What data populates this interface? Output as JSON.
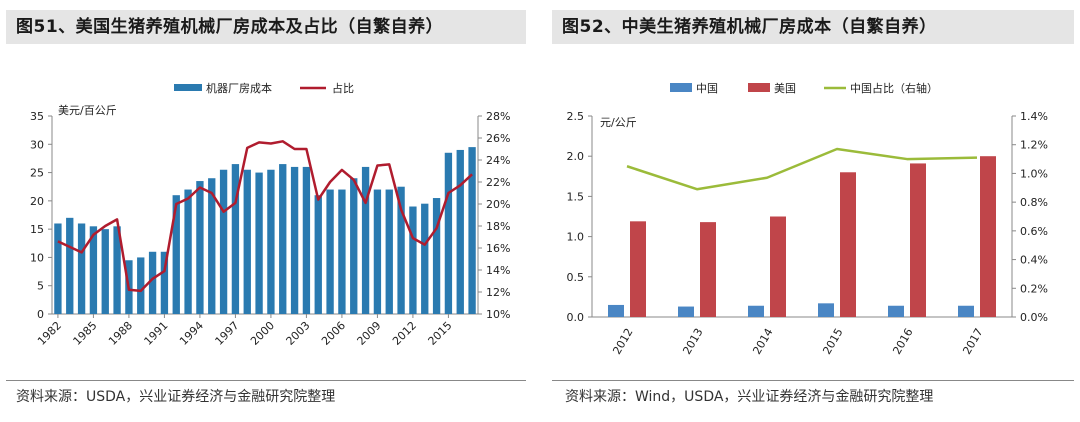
{
  "figure_left": {
    "header": "图51、美国生猪养殖机械厂房成本及占比（自繁自养）",
    "source": "资料来源：USDA，兴业证券经济与金融研究院整理"
  },
  "figure_right": {
    "header": "图52、中美生猪养殖机械厂房成本（自繁自养）",
    "source": "资料来源：Wind，USDA，兴业证券经济与金融研究院整理"
  },
  "chart_data": [
    {
      "type": "bar",
      "ylabel": "美元/百公斤",
      "ylim": [
        0,
        35
      ],
      "yticks": [
        "0",
        "5",
        "10",
        "15",
        "20",
        "25",
        "30",
        "35"
      ],
      "y2lim": [
        0.1,
        0.28
      ],
      "y2ticks": [
        "10%",
        "12%",
        "14%",
        "16%",
        "18%",
        "20%",
        "22%",
        "24%",
        "26%",
        "28%"
      ],
      "x": [
        1982,
        1983,
        1984,
        1985,
        1986,
        1987,
        1988,
        1989,
        1990,
        1991,
        1992,
        1993,
        1994,
        1995,
        1996,
        1997,
        1998,
        1999,
        2000,
        2001,
        2002,
        2003,
        2004,
        2005,
        2006,
        2007,
        2008,
        2009,
        2010,
        2011,
        2012,
        2013,
        2014,
        2015,
        2016,
        2017
      ],
      "xticklabels": [
        "1982",
        "1985",
        "1988",
        "1991",
        "1994",
        "1997",
        "2000",
        "2003",
        "2006",
        "2009",
        "2012",
        "2015"
      ],
      "legend_position": "top",
      "grid": false,
      "series": [
        {
          "name": "机器厂房成本",
          "kind": "bar",
          "axis": "left",
          "color": "#2a7ab0",
          "values": [
            16,
            17,
            16,
            15.5,
            15,
            15.5,
            9.5,
            10,
            11,
            11,
            21,
            22,
            23.5,
            24,
            25.5,
            26.5,
            25.5,
            25,
            25.5,
            26.5,
            26,
            26,
            21,
            22,
            22,
            24,
            26,
            22,
            22,
            22.5,
            19,
            19.5,
            20.5,
            28.5,
            29,
            29.5
          ]
        },
        {
          "name": "占比",
          "kind": "line",
          "axis": "right",
          "color": "#b01c2e",
          "values": [
            0.166,
            0.161,
            0.156,
            0.172,
            0.18,
            0.186,
            0.122,
            0.121,
            0.132,
            0.139,
            0.2,
            0.205,
            0.215,
            0.21,
            0.193,
            0.201,
            0.251,
            0.256,
            0.255,
            0.257,
            0.25,
            0.25,
            0.204,
            0.22,
            0.231,
            0.222,
            0.201,
            0.235,
            0.236,
            0.195,
            0.169,
            0.163,
            0.178,
            0.21,
            0.217,
            0.227
          ]
        }
      ]
    },
    {
      "type": "bar",
      "ylabel": "元/公斤",
      "ylim": [
        0,
        2.5
      ],
      "yticks": [
        "0.0",
        "0.5",
        "1.0",
        "1.5",
        "2.0",
        "2.5"
      ],
      "y2lim": [
        0,
        0.014
      ],
      "y2ticks": [
        "0.0%",
        "0.2%",
        "0.4%",
        "0.6%",
        "0.8%",
        "1.0%",
        "1.2%",
        "1.4%"
      ],
      "categories": [
        "2012",
        "2013",
        "2014",
        "2015",
        "2016",
        "2017"
      ],
      "legend_position": "top",
      "grid": false,
      "series": [
        {
          "name": "中国",
          "kind": "bar",
          "axis": "left",
          "color": "#4a86c4",
          "values": [
            0.15,
            0.13,
            0.14,
            0.17,
            0.14,
            0.14
          ]
        },
        {
          "name": "美国",
          "kind": "bar",
          "axis": "left",
          "color": "#c0454a",
          "values": [
            1.19,
            1.18,
            1.25,
            1.8,
            1.91,
            2.0
          ]
        },
        {
          "name": "中国占比（右轴）",
          "kind": "line",
          "axis": "right",
          "color": "#9bbb3a",
          "values": [
            0.0105,
            0.0089,
            0.0097,
            0.0117,
            0.011,
            0.0111
          ]
        }
      ]
    }
  ]
}
